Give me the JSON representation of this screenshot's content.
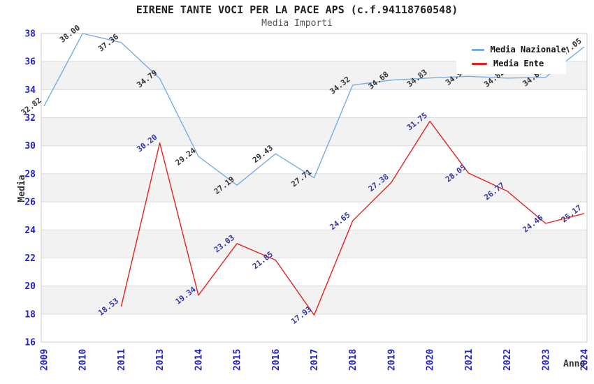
{
  "chart_data": {
    "type": "line",
    "title": "EIRENE TANTE VOCI PER LA PACE APS (c.f.94118760548)",
    "subtitle": "Media Importi",
    "xlabel": "Anno",
    "ylabel": "Media",
    "ylim": [
      16,
      38
    ],
    "ytick_step": 2,
    "grid": "horizontal gridlines with alternating gray bands",
    "legend_position": "top-right",
    "categories": [
      "2009",
      "2010",
      "2011",
      "2013",
      "2014",
      "2015",
      "2016",
      "2017",
      "2018",
      "2019",
      "2020",
      "2021",
      "2022",
      "2023",
      "2024"
    ],
    "series": [
      {
        "name": "Media Nazionale",
        "color": "#77ADE3",
        "label_color": "#333333",
        "values": [
          32.82,
          38.0,
          37.36,
          34.79,
          29.24,
          27.19,
          29.43,
          27.71,
          34.32,
          34.68,
          34.83,
          34.95,
          34.82,
          34.88,
          37.05
        ]
      },
      {
        "name": "Media Ente",
        "color": "#E42320",
        "label_color": "#3434AD",
        "values": [
          null,
          null,
          18.53,
          30.2,
          19.34,
          23.03,
          21.85,
          17.93,
          24.65,
          27.38,
          31.75,
          28.05,
          26.77,
          24.46,
          25.17
        ]
      }
    ],
    "colors": {
      "tick_label": "#2222CC",
      "axis_title": "#333333",
      "title": "#222222",
      "subtitle": "#555555",
      "band_fill": "#F2F2F2",
      "gridline": "#DCDCDC",
      "plot_border": "#CCCCCC",
      "legend_bg": "#FFFFFF"
    }
  }
}
